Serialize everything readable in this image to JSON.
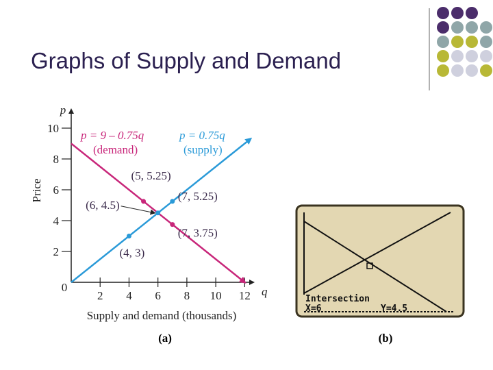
{
  "title": "Graphs of Supply and Demand",
  "chart_data": {
    "type": "line",
    "panel_label": "(a)",
    "x_label": "q",
    "y_label": "p",
    "y_title": "Price",
    "x_title": "Supply and demand (thousands)",
    "origin_label": "0",
    "xlim": [
      0,
      12.6
    ],
    "ylim": [
      0,
      11.2
    ],
    "xticks": [
      2,
      4,
      6,
      8,
      10,
      12
    ],
    "yticks": [
      2,
      4,
      6,
      8,
      10
    ],
    "series": [
      {
        "name": "p = 9 – 0.75q",
        "label": "(demand)",
        "color": "#c8267a",
        "x": [
          0,
          12
        ],
        "values": [
          9,
          0
        ]
      },
      {
        "name": "p = 0.75q",
        "label": "(supply)",
        "color": "#2a9ad8",
        "x": [
          0,
          12.4
        ],
        "values": [
          0,
          9.3
        ]
      }
    ],
    "points": [
      {
        "x": 5,
        "y": 5.25,
        "label": "(5, 5.25)",
        "color": "#c8267a"
      },
      {
        "x": 7,
        "y": 5.25,
        "label": "(7, 5.25)",
        "color": "#2a9ad8"
      },
      {
        "x": 6,
        "y": 4.5,
        "label": "(6, 4.5)",
        "color": "#2a9ad8"
      },
      {
        "x": 7,
        "y": 3.75,
        "label": "(7, 3.75)",
        "color": "#c8267a"
      },
      {
        "x": 4,
        "y": 3,
        "label": "(4, 3)",
        "color": "#2a9ad8"
      }
    ]
  },
  "calculator": {
    "panel_label": "(b)",
    "texts": [
      "Intersection",
      "X=6",
      "Y=4.5"
    ]
  }
}
